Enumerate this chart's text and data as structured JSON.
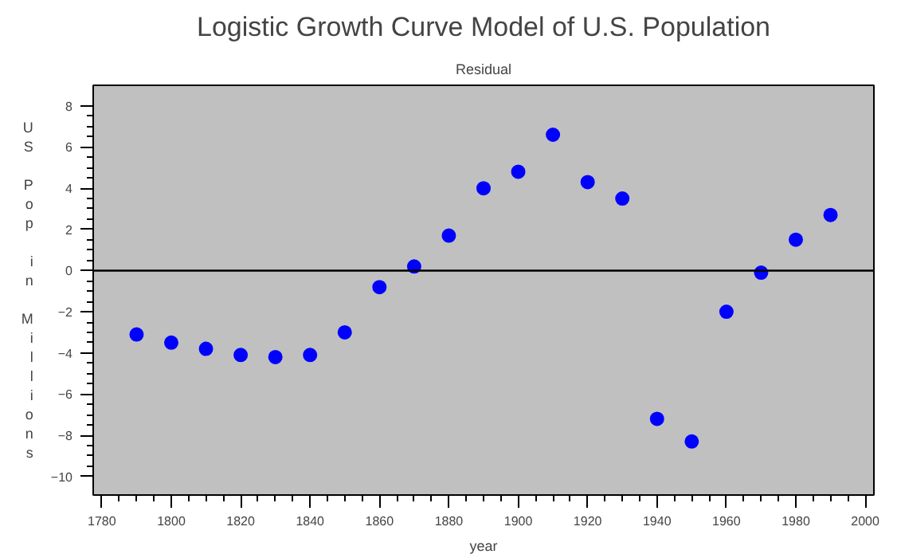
{
  "chart_data": {
    "type": "scatter",
    "title": "Logistic Growth Curve Model of U.S. Population",
    "subtitle": "Residual",
    "xlabel": "year",
    "ylabel": "US Pop in Millions",
    "x": [
      1790,
      1800,
      1810,
      1820,
      1830,
      1840,
      1850,
      1860,
      1870,
      1880,
      1890,
      1900,
      1910,
      1920,
      1930,
      1940,
      1950,
      1960,
      1970,
      1980,
      1990
    ],
    "series": [
      {
        "color": "#0000ff",
        "values": [
          -3.1,
          -3.5,
          -3.8,
          -4.1,
          -4.2,
          -4.1,
          -3.0,
          -0.8,
          0.2,
          1.7,
          4.0,
          4.8,
          6.6,
          4.3,
          3.5,
          -7.2,
          -8.3,
          -2.0,
          -0.1,
          1.5,
          2.7
        ]
      }
    ],
    "xlim": [
      1777.5,
      2002.5
    ],
    "ylim": [
      -10.9,
      9
    ],
    "xticks": [
      1780,
      1800,
      1820,
      1840,
      1860,
      1880,
      1900,
      1920,
      1940,
      1960,
      1980,
      2000
    ],
    "yticks": [
      -10,
      -8,
      -6,
      -4,
      -2,
      0,
      2,
      4,
      6,
      8
    ],
    "ref_lines": [
      {
        "axis": "y",
        "value": 0,
        "color": "#000000"
      }
    ],
    "marker": "circle",
    "grid": false
  }
}
